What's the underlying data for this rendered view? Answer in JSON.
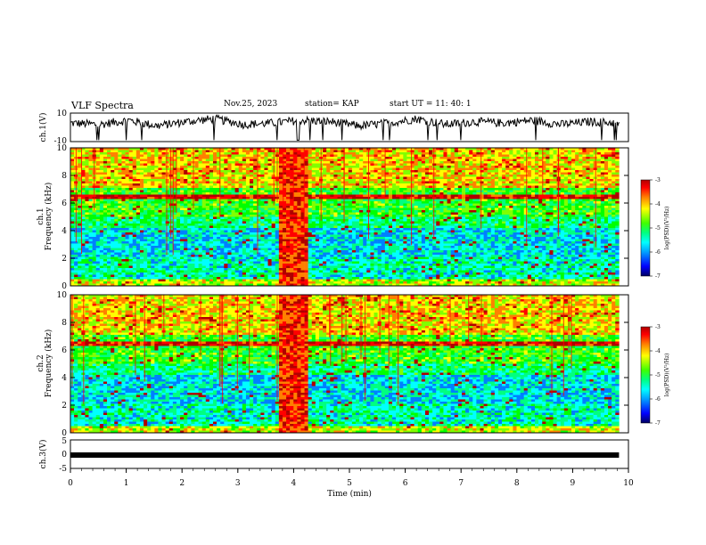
{
  "header": {
    "title": "VLF Spectra",
    "date": "Nov.25, 2023",
    "station": "station= KAP",
    "start": "start  UT =   11: 40: 1"
  },
  "chart_data": [
    {
      "type": "line",
      "panel": "ch1-waveform",
      "ylabel": "ch.1(V)",
      "ylim": [
        -10,
        10
      ],
      "yticks": [
        "10",
        "-10"
      ],
      "x_range_min": [
        0,
        9.83
      ],
      "series": [
        {
          "values_V_approx": [
            3,
            2,
            5,
            1,
            4,
            6,
            2,
            3,
            5,
            4,
            1,
            3,
            6,
            2,
            4,
            3,
            5,
            2,
            4,
            3
          ]
        }
      ]
    },
    {
      "type": "heatmap",
      "panel": "ch1-spectrogram",
      "ylabel": "ch.1\nFrequency  (kHz)",
      "xlim": [
        0,
        10
      ],
      "ylim": [
        0,
        10
      ],
      "yticks": [
        "0",
        "2",
        "4",
        "6",
        "8",
        "10"
      ],
      "data_x_max": 9.83,
      "burst_interval_min": [
        3.7,
        4.25
      ],
      "colorbar": {
        "label": "log(PSD)(V²/Hz)",
        "range": [
          -7,
          -3
        ],
        "ticks": [
          "-3",
          "-4",
          "-5",
          "-6",
          "-7"
        ]
      }
    },
    {
      "type": "heatmap",
      "panel": "ch2-spectrogram",
      "ylabel": "ch.2\nFrequency  (kHz)",
      "xlim": [
        0,
        10
      ],
      "ylim": [
        0,
        10
      ],
      "yticks": [
        "0",
        "2",
        "4",
        "6",
        "8",
        "10"
      ],
      "data_x_max": 9.83,
      "burst_interval_min": [
        3.7,
        4.25
      ],
      "colorbar": {
        "label": "log(PSD)(V²/Hz)",
        "range": [
          -7,
          -3
        ],
        "ticks": [
          "-3",
          "-4",
          "-5",
          "-6",
          "-7"
        ]
      }
    },
    {
      "type": "line",
      "panel": "ch3-waveform",
      "ylabel": "ch.3(V)",
      "ylim": [
        -5,
        5
      ],
      "yticks": [
        "5",
        "0",
        "-5"
      ],
      "series": [
        {
          "values_V": [
            -1.5,
            -1.5
          ]
        }
      ],
      "xlabel": "Time  (min)",
      "xticks": [
        "0",
        "1",
        "2",
        "3",
        "4",
        "5",
        "6",
        "7",
        "8",
        "9",
        "10"
      ]
    }
  ],
  "colors": {
    "scale": [
      "#000080",
      "#0000ff",
      "#0080ff",
      "#00ffff",
      "#00ff80",
      "#00ff00",
      "#80ff00",
      "#ffff00",
      "#ff8000",
      "#ff0000",
      "#b00000"
    ]
  }
}
